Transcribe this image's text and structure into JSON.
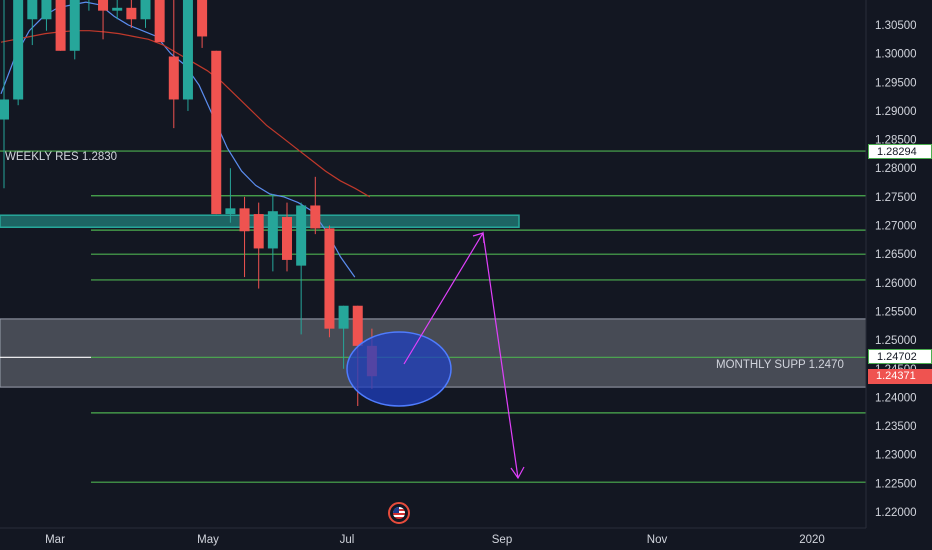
{
  "chart_data": {
    "type": "candlestick",
    "instrument_note": "",
    "yaxis": {
      "ylim": [
        1.2175,
        1.3105
      ],
      "ticks": [
        "1.30500",
        "1.30000",
        "1.29500",
        "1.29000",
        "1.28500",
        "1.28000",
        "1.27500",
        "1.27000",
        "1.26500",
        "1.26000",
        "1.25500",
        "1.25000",
        "1.24500",
        "1.24000",
        "1.23500",
        "1.23000",
        "1.22500",
        "1.22000"
      ]
    },
    "xaxis": {
      "ticks": [
        "Mar",
        "May",
        "Jul",
        "Sep",
        "Nov",
        "2020"
      ]
    },
    "candles": [
      {
        "date": "2019-02-04",
        "o": 1.2885,
        "h": 1.3105,
        "l": 1.2765,
        "c": 1.292
      },
      {
        "date": "2019-02-11",
        "o": 1.292,
        "h": 1.3105,
        "l": 1.291,
        "c": 1.3105
      },
      {
        "date": "2019-02-18",
        "o": 1.306,
        "h": 1.3105,
        "l": 1.3015,
        "c": 1.3105
      },
      {
        "date": "2019-02-25",
        "o": 1.306,
        "h": 1.3105,
        "l": 1.304,
        "c": 1.3105
      },
      {
        "date": "2019-03-04",
        "o": 1.3105,
        "h": 1.3105,
        "l": 1.3005,
        "c": 1.3005
      },
      {
        "date": "2019-03-11",
        "o": 1.3005,
        "h": 1.3105,
        "l": 1.299,
        "c": 1.3105
      },
      {
        "date": "2019-03-18",
        "o": 1.3105,
        "h": 1.3105,
        "l": 1.3075,
        "c": 1.3105
      },
      {
        "date": "2019-03-25",
        "o": 1.3105,
        "h": 1.3105,
        "l": 1.3025,
        "c": 1.3075
      },
      {
        "date": "2019-04-01",
        "o": 1.3075,
        "h": 1.3105,
        "l": 1.306,
        "c": 1.308
      },
      {
        "date": "2019-04-08",
        "o": 1.308,
        "h": 1.3105,
        "l": 1.3045,
        "c": 1.306
      },
      {
        "date": "2019-04-15",
        "o": 1.306,
        "h": 1.3105,
        "l": 1.3045,
        "c": 1.3105
      },
      {
        "date": "2019-04-22",
        "o": 1.3105,
        "h": 1.3105,
        "l": 1.302,
        "c": 1.302
      },
      {
        "date": "2019-04-29",
        "o": 1.2995,
        "h": 1.3105,
        "l": 1.287,
        "c": 1.292
      },
      {
        "date": "2019-05-06",
        "o": 1.292,
        "h": 1.3105,
        "l": 1.29,
        "c": 1.3105
      },
      {
        "date": "2019-05-13",
        "o": 1.3105,
        "h": 1.3105,
        "l": 1.301,
        "c": 1.303
      },
      {
        "date": "2019-05-20",
        "o": 1.3005,
        "h": 1.3005,
        "l": 1.272,
        "c": 1.272
      },
      {
        "date": "2019-05-27",
        "o": 1.272,
        "h": 1.28,
        "l": 1.2705,
        "c": 1.273
      },
      {
        "date": "2019-06-03",
        "o": 1.273,
        "h": 1.275,
        "l": 1.261,
        "c": 1.269
      },
      {
        "date": "2019-06-10",
        "o": 1.272,
        "h": 1.274,
        "l": 1.259,
        "c": 1.266
      },
      {
        "date": "2019-06-17",
        "o": 1.266,
        "h": 1.2755,
        "l": 1.262,
        "c": 1.2725
      },
      {
        "date": "2019-06-24",
        "o": 1.2715,
        "h": 1.274,
        "l": 1.262,
        "c": 1.264
      },
      {
        "date": "2019-07-01",
        "o": 1.263,
        "h": 1.274,
        "l": 1.251,
        "c": 1.2735
      },
      {
        "date": "2019-07-08",
        "o": 1.2735,
        "h": 1.2785,
        "l": 1.2685,
        "c": 1.2695
      },
      {
        "date": "2019-07-15",
        "o": 1.2695,
        "h": 1.27,
        "l": 1.2505,
        "c": 1.252
      },
      {
        "date": "2019-07-22",
        "o": 1.252,
        "h": 1.256,
        "l": 1.245,
        "c": 1.256
      },
      {
        "date": "2019-07-29",
        "o": 1.256,
        "h": 1.256,
        "l": 1.2385,
        "c": 1.249
      },
      {
        "date": "2019-08-05",
        "o": 1.249,
        "h": 1.252,
        "l": 1.2415,
        "c": 1.2437
      }
    ],
    "moving_averages": [
      {
        "color": "#5b8def",
        "values": [
          1.293,
          1.2995,
          1.304,
          1.3065,
          1.308,
          1.3085,
          1.309,
          1.3085,
          1.3065,
          1.305,
          1.304,
          1.303,
          1.3,
          1.298,
          1.2945,
          1.289,
          1.2835,
          1.2795,
          1.277,
          1.2755,
          1.275,
          1.274,
          1.2725,
          1.269,
          1.2645,
          1.261
        ]
      },
      {
        "color": "#c0392b",
        "values": [
          1.302,
          1.3025,
          1.303,
          1.3035,
          1.3038,
          1.304,
          1.304,
          1.3038,
          1.3035,
          1.303,
          1.3025,
          1.3015,
          1.3,
          1.2985,
          1.297,
          1.295,
          1.2925,
          1.29,
          1.2875,
          1.2855,
          1.2835,
          1.2815,
          1.2795,
          1.2778,
          1.2765,
          1.275
        ]
      }
    ],
    "levels": [
      {
        "price": 1.283,
        "color": "#4caf50",
        "from": "left",
        "label": "WEEKLY RES 1.2830"
      },
      {
        "price": 1.2752,
        "color": "#4caf50",
        "from": "mid"
      },
      {
        "price": 1.2692,
        "color": "#4caf50",
        "from": "mid"
      },
      {
        "price": 1.265,
        "color": "#4caf50",
        "from": "mid"
      },
      {
        "price": 1.2605,
        "color": "#4caf50",
        "from": "mid"
      },
      {
        "price": 1.247,
        "color": "#4caf50",
        "from": "mid",
        "label": "MONTHLY SUPP 1.2470"
      },
      {
        "price": 1.2373,
        "color": "#4caf50",
        "from": "mid"
      },
      {
        "price": 1.2252,
        "color": "#4caf50",
        "from": "mid"
      }
    ],
    "zones": [
      {
        "from": 1.2697,
        "to": 1.2718,
        "color": "#26a69a"
      },
      {
        "from": 1.2418,
        "to": 1.2537,
        "color": "#d1d4dc"
      }
    ],
    "price_tags": {
      "resistance": "1.28294",
      "support": "1.24702",
      "current": "1.24371"
    },
    "annotations": {
      "weekly_res": "WEEKLY RES 1.2830",
      "monthly_supp": "MONTHLY SUPP 1.2470"
    },
    "colors": {
      "background": "#131722",
      "up": "#26a69a",
      "down": "#ef5350",
      "level": "#4caf50",
      "arrow": "#e040fb",
      "circle": "#1f3fbf",
      "grid": "#1e222d",
      "axis_text": "#d1d4dc"
    }
  }
}
